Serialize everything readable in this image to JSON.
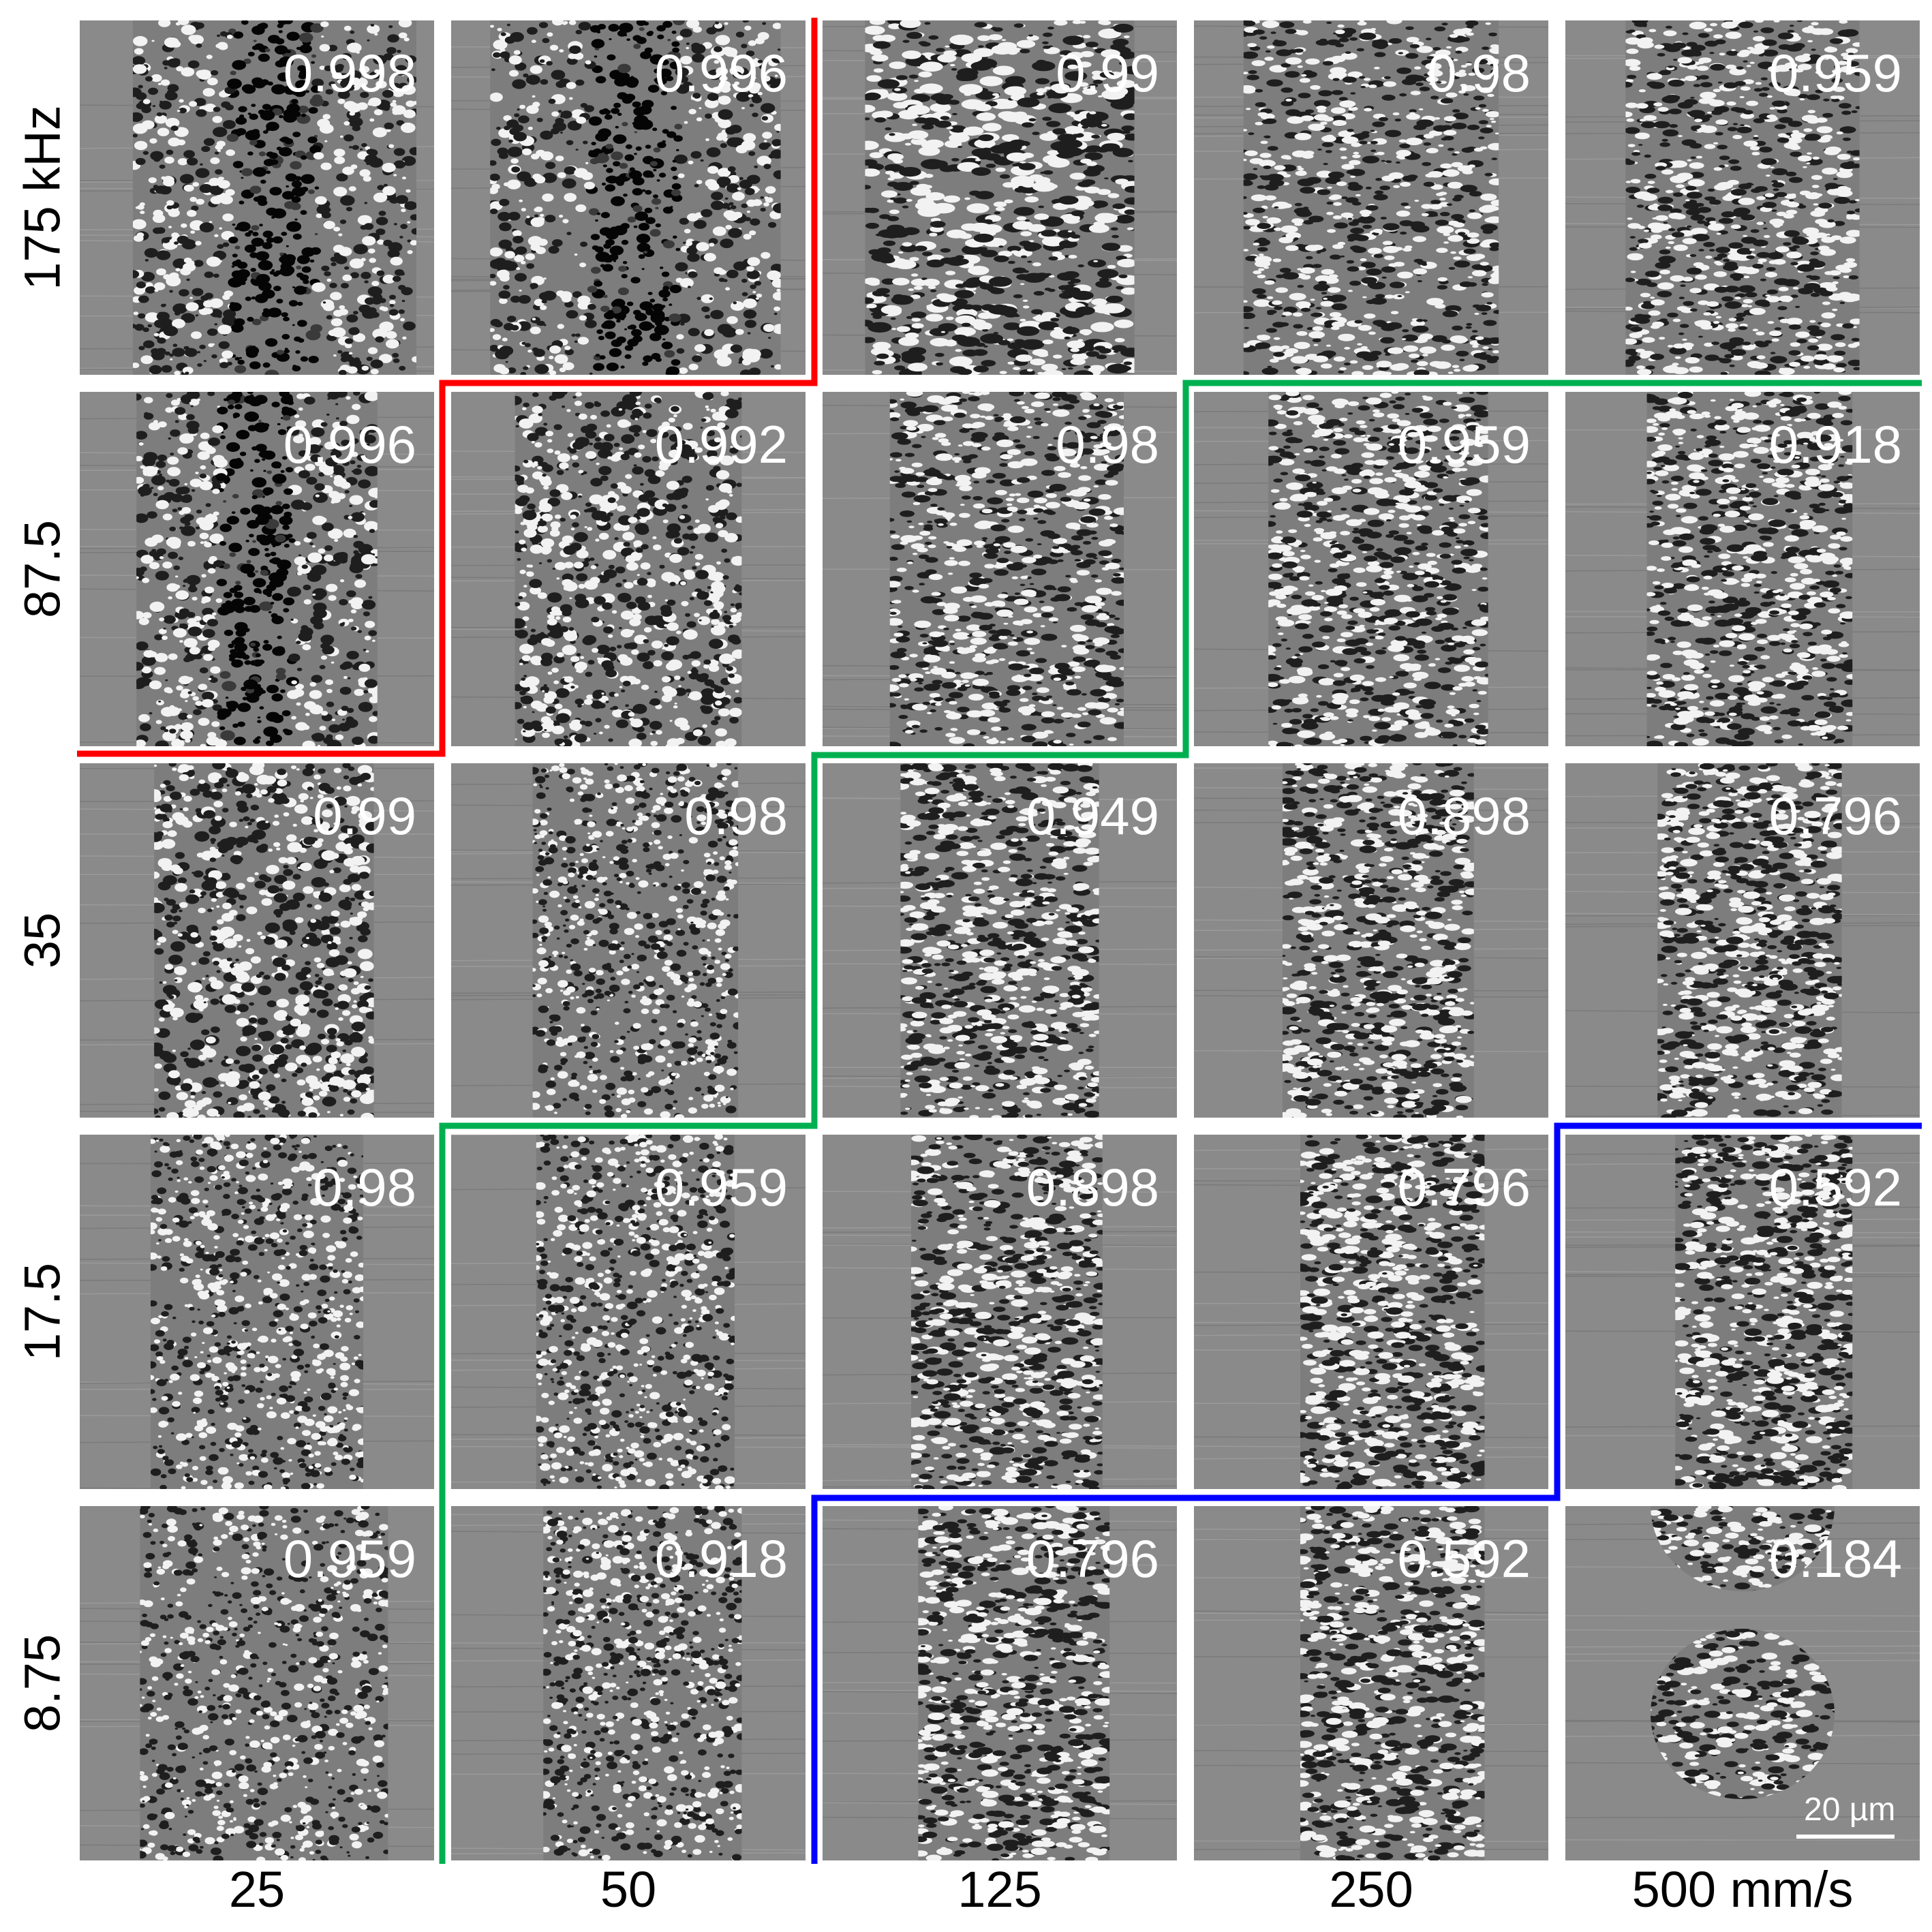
{
  "figure": {
    "row_labels": [
      "175 kHz",
      "87.5",
      "35",
      "17.5",
      "8.75"
    ],
    "col_labels": [
      "25",
      "50",
      "125",
      "250",
      "500 mm/s"
    ],
    "values": [
      [
        "0.998",
        "0.996",
        "0.99",
        "0.98",
        "0.959"
      ],
      [
        "0.996",
        "0.992",
        "0.98",
        "0.959",
        "0.918"
      ],
      [
        "0.99",
        "0.98",
        "0.949",
        "0.898",
        "0.796"
      ],
      [
        "0.98",
        "0.959",
        "0.898",
        "0.796",
        "0.592"
      ],
      [
        "0.959",
        "0.918",
        "0.796",
        "0.592",
        "0.184"
      ]
    ],
    "scale_bar": "20 µm",
    "boundary_colors": {
      "red": "#ff0000",
      "green": "#00b050",
      "blue": "#0000ff"
    },
    "background_color": "#8c8c8c"
  }
}
